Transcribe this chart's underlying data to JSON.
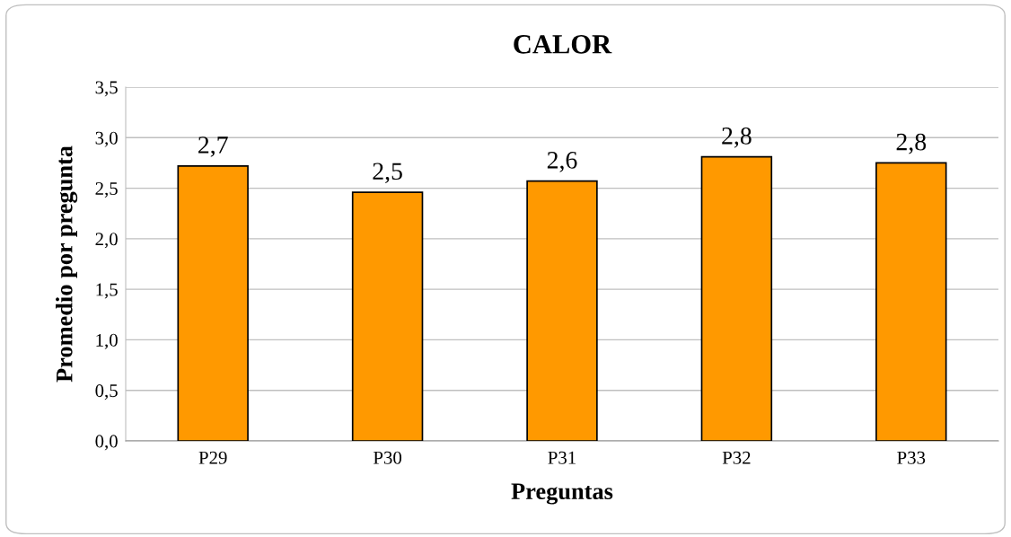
{
  "chart_data": {
    "type": "bar",
    "title": "CALOR",
    "xlabel": "Preguntas",
    "ylabel": "Promedio por pregunta",
    "categories": [
      "P29",
      "P30",
      "P31",
      "P32",
      "P33"
    ],
    "values": [
      2.72,
      2.46,
      2.57,
      2.81,
      2.75
    ],
    "value_labels": [
      "2,7",
      "2,5",
      "2,6",
      "2,8",
      "2,8"
    ],
    "color": "#ff9900",
    "ylim": [
      0,
      3.5
    ],
    "yticks": [
      {
        "value": 0,
        "label": "0,0"
      },
      {
        "value": 0.5,
        "label": "0,5"
      },
      {
        "value": 1,
        "label": "1,0"
      },
      {
        "value": 1.5,
        "label": "1,5"
      },
      {
        "value": 2,
        "label": "2,0"
      },
      {
        "value": 2.5,
        "label": "2,5"
      },
      {
        "value": 3,
        "label": "3,0"
      },
      {
        "value": 3.5,
        "label": "3,5"
      }
    ],
    "grid": "y",
    "legend": false
  }
}
